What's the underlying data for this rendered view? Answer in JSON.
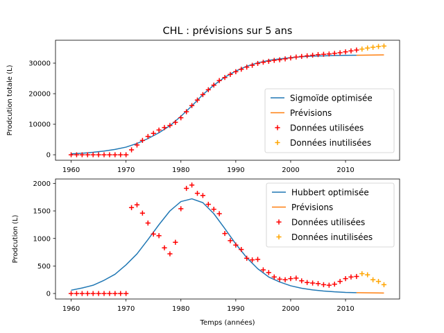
{
  "figure": {
    "title": "CHL : prévisions sur 5 ans",
    "series_colors": {
      "fit": "#1f77b4",
      "forecast": "#ff7f0e",
      "used": "#ff0000",
      "unused": "#ffa500"
    }
  },
  "chart_data": [
    {
      "type": "line",
      "ylabel": "Prodcution totale (L)",
      "xlabel": "",
      "xlim": [
        1957.15,
        2019.85
      ],
      "ylim": [
        -1800,
        37500
      ],
      "x_ticks": [
        1960,
        1970,
        1980,
        1990,
        2000,
        2010
      ],
      "y_ticks": [
        0,
        10000,
        20000,
        30000
      ],
      "legend_position": "lower right",
      "series": [
        {
          "name": "Sigmoïde optimisée",
          "kind": "line",
          "color": "#1f77b4",
          "x": [
            1960,
            1962,
            1964,
            1966,
            1968,
            1970,
            1972,
            1974,
            1976,
            1978,
            1980,
            1982,
            1984,
            1986,
            1988,
            1990,
            1992,
            1994,
            1996,
            1998,
            2000,
            2002,
            2004,
            2006,
            2008,
            2010,
            2012
          ],
          "y": [
            300,
            500,
            800,
            1200,
            1750,
            2500,
            3700,
            5300,
            7200,
            9500,
            12600,
            16000,
            19700,
            22800,
            25400,
            27400,
            29000,
            30100,
            30900,
            31400,
            31800,
            32100,
            32300,
            32400,
            32500,
            32550,
            32600
          ]
        },
        {
          "name": "Prévisions",
          "kind": "line",
          "color": "#ff7f0e",
          "x": [
            2012,
            2017
          ],
          "y": [
            32600,
            32700
          ]
        },
        {
          "name": "Données utilisées",
          "kind": "scatter",
          "marker": "+",
          "color": "#ff0000",
          "x": [
            1960,
            1961,
            1962,
            1963,
            1964,
            1965,
            1966,
            1967,
            1968,
            1969,
            1970,
            1971,
            1972,
            1973,
            1974,
            1975,
            1976,
            1977,
            1978,
            1979,
            1980,
            1981,
            1982,
            1983,
            1984,
            1985,
            1986,
            1987,
            1988,
            1989,
            1990,
            1991,
            1992,
            1993,
            1994,
            1995,
            1996,
            1997,
            1998,
            1999,
            2000,
            2001,
            2002,
            2003,
            2004,
            2005,
            2006,
            2007,
            2008,
            2009,
            2010,
            2011,
            2012
          ],
          "y": [
            0,
            0,
            0,
            0,
            0,
            0,
            0,
            0,
            0,
            0,
            0,
            1600,
            3200,
            4700,
            6000,
            7000,
            8100,
            8900,
            9600,
            10600,
            12100,
            14100,
            16100,
            17900,
            19700,
            21300,
            22800,
            24300,
            25300,
            26300,
            27200,
            28000,
            28700,
            29300,
            29900,
            30300,
            30600,
            30900,
            31100,
            31400,
            31700,
            32000,
            32200,
            32400,
            32600,
            32800,
            32900,
            33000,
            33200,
            33400,
            33700,
            34000,
            34300
          ]
        },
        {
          "name": "Données inutilisées",
          "kind": "scatter",
          "marker": "+",
          "color": "#ffa500",
          "x": [
            2013,
            2014,
            2015,
            2016,
            2017
          ],
          "y": [
            34600,
            34950,
            35200,
            35450,
            35600
          ]
        }
      ]
    },
    {
      "type": "line",
      "ylabel": "Prodcution (L)",
      "xlabel": "Temps (années)",
      "xlim": [
        1957.15,
        2019.85
      ],
      "ylim": [
        -100,
        2080
      ],
      "x_ticks": [
        1960,
        1970,
        1980,
        1990,
        2000,
        2010
      ],
      "y_ticks": [
        0,
        500,
        1000,
        1500,
        2000
      ],
      "legend_position": "upper right",
      "series": [
        {
          "name": "Hubbert optimisée",
          "kind": "line",
          "color": "#1f77b4",
          "x": [
            1960,
            1962,
            1964,
            1966,
            1968,
            1970,
            1972,
            1974,
            1976,
            1978,
            1980,
            1982,
            1984,
            1986,
            1988,
            1990,
            1992,
            1994,
            1996,
            1998,
            2000,
            2002,
            2004,
            2006,
            2008,
            2010,
            2012
          ],
          "y": [
            60,
            100,
            150,
            240,
            350,
            520,
            720,
            980,
            1250,
            1500,
            1670,
            1720,
            1650,
            1450,
            1180,
            900,
            650,
            450,
            300,
            210,
            140,
            95,
            65,
            45,
            30,
            20,
            15
          ]
        },
        {
          "name": "Prévisions",
          "kind": "line",
          "color": "#ff7f0e",
          "x": [
            2012,
            2017
          ],
          "y": [
            15,
            8
          ]
        },
        {
          "name": "Données utilisées",
          "kind": "scatter",
          "marker": "+",
          "color": "#ff0000",
          "x": [
            1960,
            1961,
            1962,
            1963,
            1964,
            1965,
            1966,
            1967,
            1968,
            1969,
            1970,
            1971,
            1972,
            1973,
            1974,
            1975,
            1976,
            1977,
            1978,
            1979,
            1980,
            1981,
            1982,
            1983,
            1984,
            1985,
            1986,
            1987,
            1988,
            1989,
            1990,
            1991,
            1992,
            1993,
            1994,
            1995,
            1996,
            1997,
            1998,
            1999,
            2000,
            2001,
            2002,
            2003,
            2004,
            2005,
            2006,
            2007,
            2008,
            2009,
            2010,
            2011,
            2012
          ],
          "y": [
            0,
            0,
            0,
            0,
            0,
            0,
            0,
            0,
            0,
            0,
            0,
            1560,
            1610,
            1460,
            1280,
            1080,
            1050,
            830,
            720,
            930,
            1540,
            1910,
            1970,
            1820,
            1780,
            1620,
            1530,
            1450,
            1090,
            960,
            880,
            800,
            640,
            610,
            620,
            430,
            380,
            300,
            260,
            250,
            270,
            280,
            230,
            200,
            190,
            180,
            160,
            150,
            170,
            220,
            270,
            300,
            310
          ]
        },
        {
          "name": "Données inutilisées",
          "kind": "scatter",
          "marker": "+",
          "color": "#ffa500",
          "x": [
            2013,
            2014,
            2015,
            2016,
            2017
          ],
          "y": [
            360,
            340,
            250,
            220,
            160
          ]
        }
      ]
    }
  ]
}
